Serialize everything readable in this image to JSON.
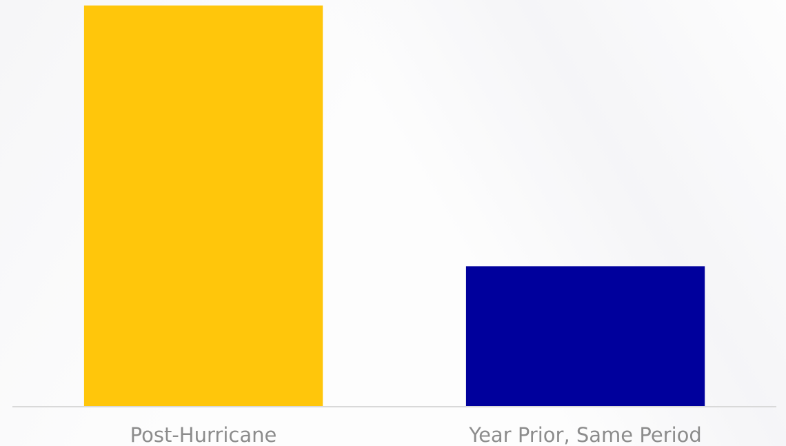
{
  "chart_data": {
    "type": "bar",
    "categories": [
      "Post-Hurricane",
      "Year Prior, Same Period"
    ],
    "values": [
      100,
      35
    ],
    "colors": [
      "#FFC60B",
      "#00009C"
    ],
    "title": "",
    "xlabel": "",
    "ylabel": "",
    "ylim": [
      0,
      100
    ],
    "grid": false,
    "legend": "none",
    "axis_line_color": "#d9d9d9",
    "tick_label_color": "#8c8c8c"
  }
}
